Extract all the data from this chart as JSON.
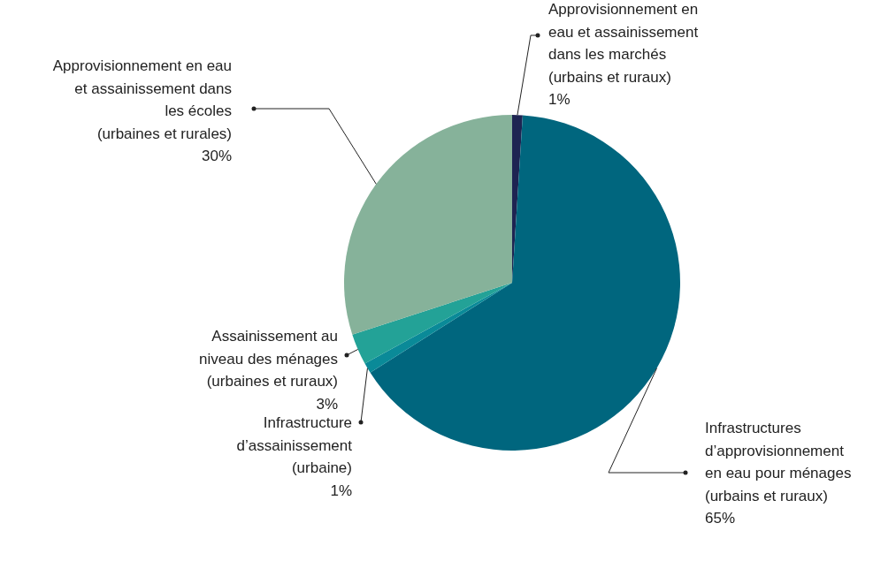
{
  "chart_data": {
    "type": "pie",
    "categories": [
      "Approvisionnement en\neau et assainissement\ndans les marchés\n(urbains et ruraux)",
      "Infrastructures\nd’approvisionnement\nen eau pour ménages\n(urbains et ruraux)",
      "Infrastructure\nd’assainissement\n(urbaine)",
      "Assainissement au\nniveau des ménages\n(urbaines et ruraux)",
      "Approvisionnement en eau\net assainissement dans\nles écoles\n(urbaines et rurales)"
    ],
    "values": [
      1,
      65,
      1,
      3,
      30
    ],
    "value_labels": [
      "1%",
      "65%",
      "1%",
      "3%",
      "30%"
    ],
    "colors": [
      "#1e2452",
      "#00667e",
      "#0a8a98",
      "#23a297",
      "#86b29a"
    ]
  }
}
